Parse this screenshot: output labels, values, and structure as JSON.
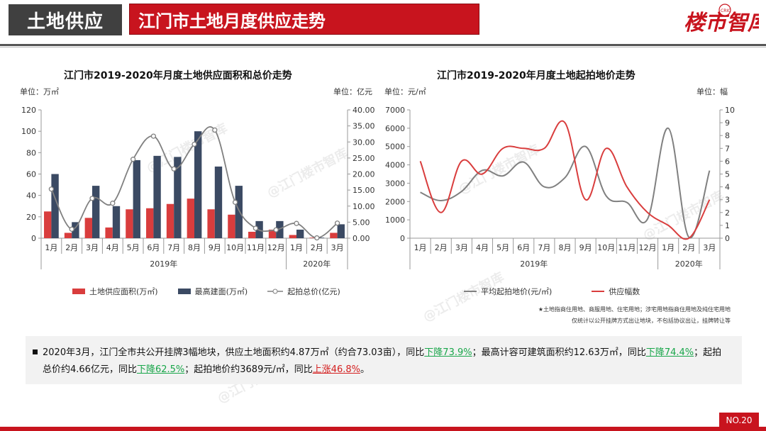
{
  "header": {
    "section": "土地供应",
    "title": "江门市土地月度供应走势",
    "logo_text": "楼市智库",
    "logo_badge": "CRIC"
  },
  "watermark": "@江门楼市智库",
  "months": [
    "1月",
    "2月",
    "3月",
    "4月",
    "5月",
    "6月",
    "7月",
    "8月",
    "9月",
    "10月",
    "11月",
    "12月",
    "1月",
    "2月",
    "3月"
  ],
  "years": [
    "2019年",
    "2020年"
  ],
  "colors": {
    "red": "#d93d3d",
    "navy": "#3b4a63",
    "gray": "#808080",
    "accent": "#c8141e",
    "down": "#19a64a"
  },
  "chart_data": [
    {
      "type": "bar",
      "title": "江门市2019-2020年月度土地供应面积和总价走势",
      "left_unit": "单位：万㎡",
      "right_unit": "单位：亿元",
      "y_left_ticks": [
        "0",
        "20",
        "40",
        "60",
        "80",
        "100",
        "120"
      ],
      "y_right_ticks": [
        "0.00",
        "5.00",
        "10.00",
        "15.00",
        "20.00",
        "25.00",
        "30.00",
        "35.00",
        "40.00"
      ],
      "ylim_left": [
        0,
        120
      ],
      "ylim_right": [
        0,
        40
      ],
      "series": [
        {
          "name": "土地供应面积(万㎡)",
          "kind": "bar",
          "axis": "left",
          "values": [
            25,
            5,
            19,
            10,
            27,
            28,
            32,
            37,
            27,
            22,
            6,
            8,
            3,
            0.5,
            5
          ]
        },
        {
          "name": "最高建面(万㎡)",
          "kind": "bar",
          "axis": "left",
          "values": [
            60,
            15,
            49,
            30,
            73,
            77,
            76,
            100,
            67,
            49,
            16,
            16,
            8,
            0.5,
            13
          ]
        },
        {
          "name": "起拍总价(亿元)",
          "kind": "line",
          "axis": "right",
          "values": [
            15.3,
            2.8,
            12.4,
            10.9,
            24.6,
            31.8,
            21.6,
            29.3,
            33.7,
            11.2,
            3.1,
            2.6,
            4.6,
            0.1,
            4.7
          ]
        }
      ]
    },
    {
      "type": "line",
      "title": "江门市2019-2020年月度土地起拍地价走势",
      "left_unit": "单位：元/㎡",
      "right_unit": "单位：幅",
      "y_left_ticks": [
        "0",
        "1000",
        "2000",
        "3000",
        "4000",
        "5000",
        "6000",
        "7000"
      ],
      "y_right_ticks": [
        "0",
        "1",
        "2",
        "3",
        "4",
        "5",
        "6",
        "7",
        "8",
        "9",
        "10"
      ],
      "ylim_left": [
        0,
        7000
      ],
      "ylim_right": [
        0,
        10
      ],
      "series": [
        {
          "name": "平均起拍地价(元/㎡)",
          "axis": "left",
          "values": [
            2500,
            2050,
            2550,
            3700,
            3400,
            4150,
            2800,
            3300,
            5000,
            2300,
            1950,
            1050,
            6000,
            50,
            3689
          ]
        },
        {
          "name": "供应幅数",
          "axis": "right",
          "values": [
            6,
            2,
            6,
            5,
            7,
            7,
            7,
            9,
            3,
            7,
            4,
            2,
            1,
            0,
            3
          ]
        }
      ],
      "note_lines": [
        "★土地指商住用地、商服用地、住宅用地；涉宅用地指商住用地及纯住宅用地",
        "仅统计以公开挂牌方式出让地块，不包括协议出让，挂牌转让等"
      ]
    }
  ],
  "summary": {
    "p1": "2020年3月，江门全市共公开挂牌3幅地块，供应土地面积约4.87万㎡（约合73.03亩），同比",
    "d1": "下降73.9%",
    "p2": "；最高计容可建筑面积约12.63万㎡，同比",
    "d2": "下降74.4%",
    "p3": "；起拍总价约4.66亿元，同比",
    "d3": "下降62.5%",
    "p4": "；起拍地价约3689元/㎡，同比",
    "u1": "上涨46.8%",
    "p5": "。"
  },
  "page_no": "NO.20"
}
